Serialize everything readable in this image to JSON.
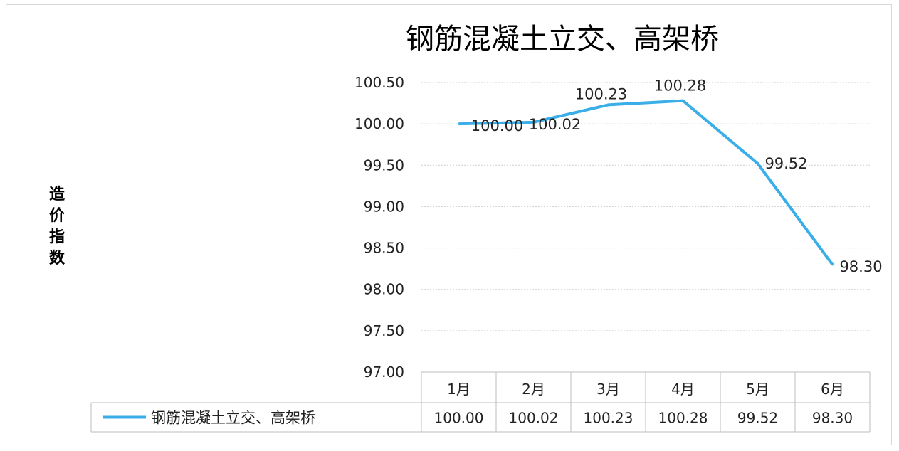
{
  "chart_data": {
    "type": "line",
    "title": "钢筋混凝土立交、高架桥",
    "ylabel": "造价指数",
    "xlabel": "",
    "categories": [
      "1月",
      "2月",
      "3月",
      "4月",
      "5月",
      "6月"
    ],
    "ylim": [
      97.0,
      100.5
    ],
    "yticks": [
      100.5,
      100.0,
      99.5,
      99.0,
      98.5,
      98.0,
      97.5,
      97.0
    ],
    "ytick_labels": [
      "100.50",
      "100.00",
      "99.50",
      "99.00",
      "98.50",
      "98.00",
      "97.50",
      "97.00"
    ],
    "series": [
      {
        "name": "钢筋混凝土立交、高架桥",
        "values": [
          100.0,
          100.02,
          100.23,
          100.28,
          99.52,
          98.3
        ],
        "labels": [
          "100.00",
          "100.02",
          "100.23",
          "100.28",
          "99.52",
          "98.30"
        ],
        "color": "#3aaee8"
      }
    ],
    "grid": true,
    "legend": "data-table-bottom"
  }
}
